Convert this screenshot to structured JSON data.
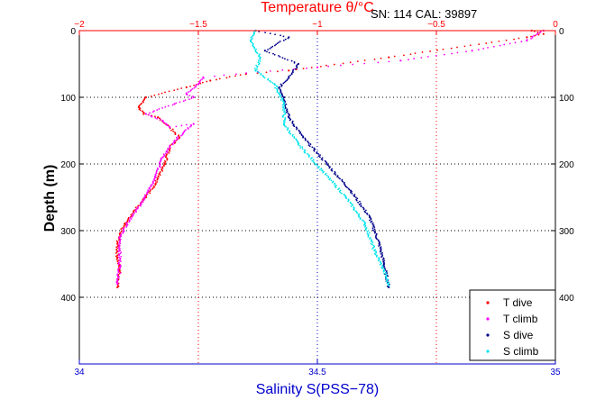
{
  "header": {
    "instrument": "SN: 114  CAL: 39897"
  },
  "chart_data": {
    "type": "scatter",
    "title": "",
    "ylabel": "Depth (m)",
    "ylim": [
      500,
      0
    ],
    "y_ticks": [
      0,
      100,
      200,
      300,
      400
    ],
    "top_axis": {
      "label": "Temperature θ/°C",
      "color": "#ff0000",
      "xlim": [
        -2,
        0
      ],
      "ticks": [
        -2,
        -1.5,
        -1,
        -0.5,
        0
      ],
      "tick_labels": [
        "−2",
        "−1.5",
        "−1",
        "−0.5",
        "0"
      ]
    },
    "bottom_axis": {
      "label": "Salinity S(PSS−78)",
      "color": "#0000cc",
      "xlim": [
        34,
        35
      ],
      "ticks": [
        34,
        34.5,
        35
      ],
      "tick_labels": [
        "34",
        "34.5",
        "35"
      ]
    },
    "grid": true,
    "legend_position": "bottom-right",
    "series": [
      {
        "name": "T dive",
        "axis": "top",
        "color": "#ff0000",
        "x": [
          -0.1,
          -0.05,
          -0.12,
          -0.7,
          -1.12,
          -1.3,
          -1.45,
          -1.55,
          -1.72,
          -1.75,
          -1.73,
          -1.67,
          -1.62,
          -1.58,
          -1.62,
          -1.64,
          -1.68,
          -1.72,
          -1.77,
          -1.81,
          -1.83,
          -1.84,
          -1.84,
          -1.83,
          -1.84
        ],
        "y": [
          0,
          5,
          10,
          40,
          60,
          65,
          75,
          85,
          100,
          115,
          125,
          130,
          145,
          160,
          175,
          200,
          230,
          250,
          270,
          290,
          305,
          320,
          340,
          360,
          385
        ]
      },
      {
        "name": "T climb",
        "axis": "top",
        "color": "#ff00ff",
        "x": [
          -0.05,
          -0.12,
          -0.35,
          -0.65,
          -1.0,
          -1.25,
          -1.48,
          -1.5,
          -1.55,
          -1.52,
          -1.6,
          -1.72,
          -1.65,
          -1.62,
          -1.52,
          -1.6,
          -1.65,
          -1.68,
          -1.74,
          -1.8,
          -1.83,
          -1.83,
          -1.83,
          -1.84
        ],
        "y": [
          0,
          15,
          30,
          45,
          55,
          62,
          70,
          80,
          95,
          100,
          110,
          125,
          135,
          145,
          140,
          165,
          190,
          220,
          260,
          290,
          310,
          330,
          355,
          380
        ]
      },
      {
        "name": "S dive",
        "axis": "bottom",
        "color": "#00008b",
        "x": [
          34.37,
          34.44,
          34.39,
          34.46,
          34.44,
          34.42,
          34.43,
          34.44,
          34.47,
          34.52,
          34.57,
          34.61,
          34.63,
          34.64,
          34.65
        ],
        "y": [
          0,
          10,
          30,
          50,
          70,
          85,
          100,
          130,
          160,
          200,
          240,
          280,
          320,
          350,
          385
        ]
      },
      {
        "name": "S climb",
        "axis": "bottom",
        "color": "#00e5ee",
        "x": [
          34.37,
          34.36,
          34.38,
          34.37,
          34.41,
          34.42,
          34.43,
          34.43,
          34.46,
          34.51,
          34.56,
          34.6,
          34.62,
          34.64,
          34.65
        ],
        "y": [
          0,
          15,
          40,
          60,
          80,
          95,
          110,
          140,
          170,
          210,
          250,
          290,
          330,
          360,
          382
        ]
      }
    ]
  }
}
